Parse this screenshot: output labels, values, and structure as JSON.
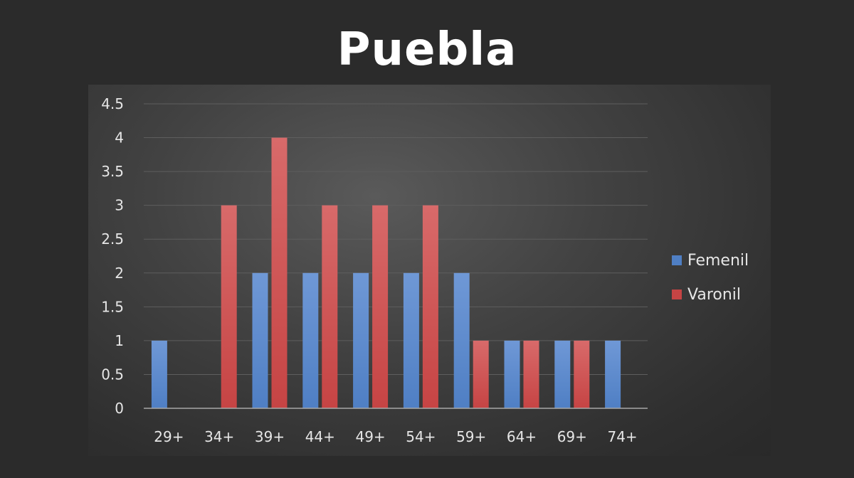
{
  "chart_data": {
    "type": "bar",
    "title": "Puebla",
    "xlabel": "",
    "ylabel": "",
    "categories": [
      "29+",
      "34+",
      "39+",
      "44+",
      "49+",
      "54+",
      "59+",
      "64+",
      "69+",
      "74+"
    ],
    "series": [
      {
        "name": "Femenil",
        "color": "#4f7fc4",
        "values": [
          1,
          0,
          2,
          2,
          2,
          2,
          2,
          1,
          1,
          1
        ]
      },
      {
        "name": "Varonil",
        "color": "#c64444",
        "values": [
          0,
          3,
          4,
          3,
          3,
          3,
          1,
          1,
          1,
          0
        ]
      }
    ],
    "ylim": [
      0,
      4.5
    ],
    "yticks": [
      "0",
      "0.5",
      "1",
      "1.5",
      "2",
      "2.5",
      "3",
      "3.5",
      "4",
      "4.5"
    ],
    "grid": true,
    "legend_position": "right"
  }
}
